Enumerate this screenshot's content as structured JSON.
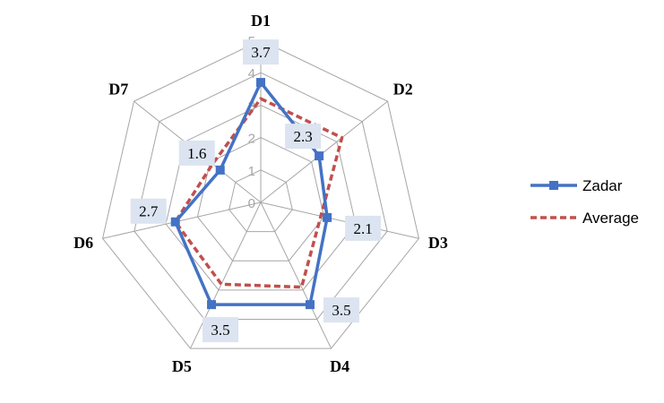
{
  "chart_data": {
    "type": "radar",
    "categories": [
      "D1",
      "D2",
      "D3",
      "D4",
      "D5",
      "D6",
      "D7"
    ],
    "rlim": [
      0,
      5
    ],
    "ticks": [
      "0",
      "1",
      "2",
      "3",
      "4",
      "5"
    ],
    "series": [
      {
        "name": "Zadar",
        "values": [
          3.7,
          2.3,
          2.1,
          3.5,
          3.5,
          2.7,
          1.6
        ],
        "labels": [
          "3.7",
          "2.3",
          "2.1",
          "3.5",
          "3.5",
          "2.7",
          "1.6"
        ],
        "color": "#4472c4",
        "style": "solid-square-markers"
      },
      {
        "name": "Average",
        "values": [
          3.2,
          3.2,
          1.9,
          2.9,
          2.8,
          2.7,
          1.9
        ],
        "color": "#c0504d",
        "style": "dashed"
      }
    ],
    "grid": true,
    "legend": "right"
  }
}
